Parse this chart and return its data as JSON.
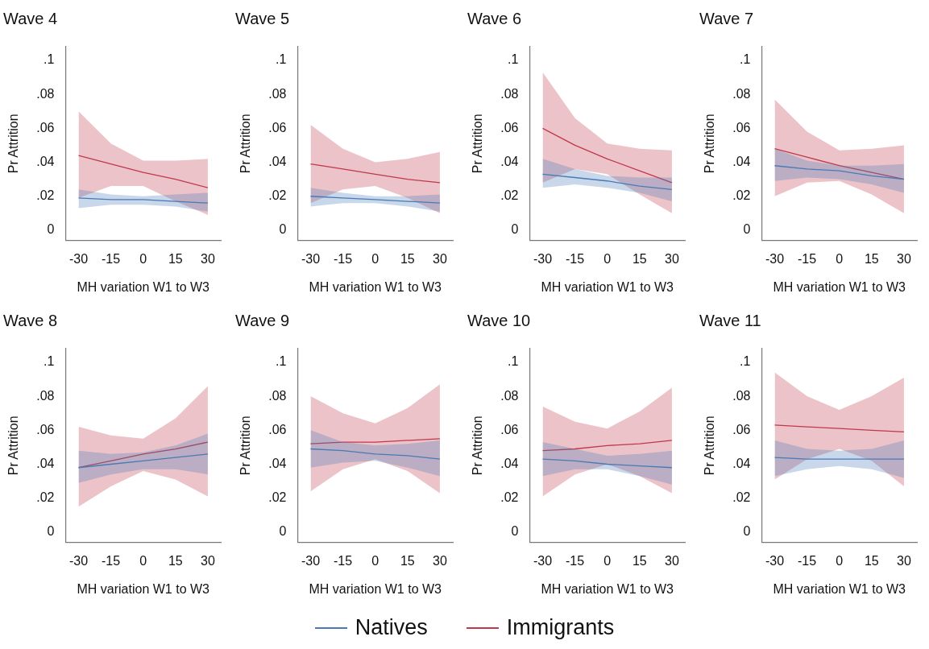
{
  "chart_data": [
    {
      "type": "line",
      "title": "Wave 4",
      "xlabel": "MH variation W1 to W3",
      "ylabel": "Pr Attrition",
      "marker": "none",
      "xlim": [
        -36,
        36
      ],
      "ylim": [
        -0.006,
        0.108
      ],
      "xticks": [
        -30,
        -15,
        0,
        15,
        30
      ],
      "yticks": [
        {
          "value": 0,
          "label": "0"
        },
        {
          "value": 0.02,
          "label": ".02"
        },
        {
          "value": 0.04,
          "label": ".04"
        },
        {
          "value": 0.06,
          "label": ".06"
        },
        {
          "value": 0.08,
          "label": ".08"
        },
        {
          "value": 0.1,
          "label": ".1"
        }
      ],
      "x": [
        -30,
        -15,
        0,
        15,
        30
      ],
      "series": [
        {
          "color": "#4a7ab5",
          "values": [
            0.019,
            0.018,
            0.018,
            0.017,
            0.016
          ],
          "lower": [
            0.013,
            0.015,
            0.015,
            0.014,
            0.011
          ],
          "upper": [
            0.024,
            0.021,
            0.02,
            0.021,
            0.022
          ]
        },
        {
          "color": "#c0394b",
          "values": [
            0.044,
            0.039,
            0.034,
            0.03,
            0.025
          ],
          "lower": [
            0.019,
            0.026,
            0.026,
            0.017,
            0.009
          ],
          "upper": [
            0.07,
            0.051,
            0.041,
            0.041,
            0.042
          ]
        }
      ]
    },
    {
      "type": "line",
      "title": "Wave 5",
      "xlabel": "MH variation W1 to W3",
      "ylabel": "Pr Attrition",
      "marker": "none",
      "xlim": [
        -36,
        36
      ],
      "ylim": [
        -0.006,
        0.108
      ],
      "xticks": [
        -30,
        -15,
        0,
        15,
        30
      ],
      "yticks": [
        {
          "value": 0,
          "label": "0"
        },
        {
          "value": 0.02,
          "label": ".02"
        },
        {
          "value": 0.04,
          "label": ".04"
        },
        {
          "value": 0.06,
          "label": ".06"
        },
        {
          "value": 0.08,
          "label": ".08"
        },
        {
          "value": 0.1,
          "label": ".1"
        }
      ],
      "x": [
        -30,
        -15,
        0,
        15,
        30
      ],
      "series": [
        {
          "color": "#4a7ab5",
          "values": [
            0.02,
            0.019,
            0.018,
            0.017,
            0.016
          ],
          "lower": [
            0.014,
            0.016,
            0.016,
            0.014,
            0.011
          ],
          "upper": [
            0.025,
            0.022,
            0.02,
            0.02,
            0.021
          ]
        },
        {
          "color": "#c0394b",
          "values": [
            0.039,
            0.036,
            0.033,
            0.03,
            0.028
          ],
          "lower": [
            0.016,
            0.024,
            0.026,
            0.019,
            0.01
          ],
          "upper": [
            0.062,
            0.048,
            0.04,
            0.042,
            0.046
          ]
        }
      ]
    },
    {
      "type": "line",
      "title": "Wave 6",
      "xlabel": "MH variation W1 to W3",
      "ylabel": "Pr Attrition",
      "marker": "none",
      "xlim": [
        -36,
        36
      ],
      "ylim": [
        -0.006,
        0.108
      ],
      "xticks": [
        -30,
        -15,
        0,
        15,
        30
      ],
      "yticks": [
        {
          "value": 0,
          "label": "0"
        },
        {
          "value": 0.02,
          "label": ".02"
        },
        {
          "value": 0.04,
          "label": ".04"
        },
        {
          "value": 0.06,
          "label": ".06"
        },
        {
          "value": 0.08,
          "label": ".08"
        },
        {
          "value": 0.1,
          "label": ".1"
        }
      ],
      "x": [
        -30,
        -15,
        0,
        15,
        30
      ],
      "series": [
        {
          "color": "#4a7ab5",
          "values": [
            0.033,
            0.031,
            0.029,
            0.026,
            0.024
          ],
          "lower": [
            0.025,
            0.027,
            0.025,
            0.022,
            0.017
          ],
          "upper": [
            0.042,
            0.036,
            0.032,
            0.031,
            0.031
          ]
        },
        {
          "color": "#c0394b",
          "values": [
            0.06,
            0.05,
            0.042,
            0.035,
            0.028
          ],
          "lower": [
            0.028,
            0.036,
            0.033,
            0.021,
            0.01
          ],
          "upper": [
            0.093,
            0.066,
            0.051,
            0.048,
            0.047
          ]
        }
      ]
    },
    {
      "type": "line",
      "title": "Wave 7",
      "xlabel": "MH variation W1 to W3",
      "ylabel": "Pr Attrition",
      "marker": "none",
      "xlim": [
        -36,
        36
      ],
      "ylim": [
        -0.006,
        0.108
      ],
      "xticks": [
        -30,
        -15,
        0,
        15,
        30
      ],
      "yticks": [
        {
          "value": 0,
          "label": "0"
        },
        {
          "value": 0.02,
          "label": ".02"
        },
        {
          "value": 0.04,
          "label": ".04"
        },
        {
          "value": 0.06,
          "label": ".06"
        },
        {
          "value": 0.08,
          "label": ".08"
        },
        {
          "value": 0.1,
          "label": ".1"
        }
      ],
      "x": [
        -30,
        -15,
        0,
        15,
        30
      ],
      "series": [
        {
          "color": "#4a7ab5",
          "values": [
            0.038,
            0.036,
            0.035,
            0.032,
            0.03
          ],
          "lower": [
            0.029,
            0.031,
            0.03,
            0.027,
            0.022
          ],
          "upper": [
            0.048,
            0.041,
            0.038,
            0.038,
            0.039
          ]
        },
        {
          "color": "#c0394b",
          "values": [
            0.048,
            0.043,
            0.038,
            0.034,
            0.03
          ],
          "lower": [
            0.02,
            0.028,
            0.029,
            0.021,
            0.01
          ],
          "upper": [
            0.077,
            0.058,
            0.047,
            0.048,
            0.05
          ]
        }
      ]
    },
    {
      "type": "line",
      "title": "Wave 8",
      "xlabel": "MH variation W1 to W3",
      "ylabel": "Pr Attrition",
      "marker": "none",
      "xlim": [
        -36,
        36
      ],
      "ylim": [
        -0.006,
        0.108
      ],
      "xticks": [
        -30,
        -15,
        0,
        15,
        30
      ],
      "yticks": [
        {
          "value": 0,
          "label": "0"
        },
        {
          "value": 0.02,
          "label": ".02"
        },
        {
          "value": 0.04,
          "label": ".04"
        },
        {
          "value": 0.06,
          "label": ".06"
        },
        {
          "value": 0.08,
          "label": ".08"
        },
        {
          "value": 0.1,
          "label": ".1"
        }
      ],
      "x": [
        -30,
        -15,
        0,
        15,
        30
      ],
      "series": [
        {
          "color": "#4a7ab5",
          "values": [
            0.038,
            0.04,
            0.042,
            0.044,
            0.046
          ],
          "lower": [
            0.029,
            0.034,
            0.037,
            0.037,
            0.034
          ],
          "upper": [
            0.048,
            0.046,
            0.047,
            0.051,
            0.058
          ]
        },
        {
          "color": "#c0394b",
          "values": [
            0.038,
            0.042,
            0.046,
            0.049,
            0.053
          ],
          "lower": [
            0.015,
            0.027,
            0.036,
            0.031,
            0.021
          ],
          "upper": [
            0.062,
            0.057,
            0.055,
            0.067,
            0.086
          ]
        }
      ]
    },
    {
      "type": "line",
      "title": "Wave 9",
      "xlabel": "MH variation W1 to W3",
      "ylabel": "Pr Attrition",
      "marker": "none",
      "xlim": [
        -36,
        36
      ],
      "ylim": [
        -0.006,
        0.108
      ],
      "xticks": [
        -30,
        -15,
        0,
        15,
        30
      ],
      "yticks": [
        {
          "value": 0,
          "label": "0"
        },
        {
          "value": 0.02,
          "label": ".02"
        },
        {
          "value": 0.04,
          "label": ".04"
        },
        {
          "value": 0.06,
          "label": ".06"
        },
        {
          "value": 0.08,
          "label": ".08"
        },
        {
          "value": 0.1,
          "label": ".1"
        }
      ],
      "x": [
        -30,
        -15,
        0,
        15,
        30
      ],
      "series": [
        {
          "color": "#4a7ab5",
          "values": [
            0.049,
            0.048,
            0.046,
            0.045,
            0.043
          ],
          "lower": [
            0.038,
            0.041,
            0.042,
            0.038,
            0.033
          ],
          "upper": [
            0.06,
            0.053,
            0.051,
            0.052,
            0.054
          ]
        },
        {
          "color": "#c0394b",
          "values": [
            0.052,
            0.053,
            0.053,
            0.054,
            0.055
          ],
          "lower": [
            0.024,
            0.037,
            0.043,
            0.036,
            0.023
          ],
          "upper": [
            0.08,
            0.07,
            0.064,
            0.073,
            0.087
          ]
        }
      ]
    },
    {
      "type": "line",
      "title": "Wave 10",
      "xlabel": "MH variation W1 to W3",
      "ylabel": "Pr Attrition",
      "marker": "none",
      "xlim": [
        -36,
        36
      ],
      "ylim": [
        -0.006,
        0.108
      ],
      "xticks": [
        -30,
        -15,
        0,
        15,
        30
      ],
      "yticks": [
        {
          "value": 0,
          "label": "0"
        },
        {
          "value": 0.02,
          "label": ".02"
        },
        {
          "value": 0.04,
          "label": ".04"
        },
        {
          "value": 0.06,
          "label": ".06"
        },
        {
          "value": 0.08,
          "label": ".08"
        },
        {
          "value": 0.1,
          "label": ".1"
        }
      ],
      "x": [
        -30,
        -15,
        0,
        15,
        30
      ],
      "series": [
        {
          "color": "#4a7ab5",
          "values": [
            0.043,
            0.042,
            0.04,
            0.039,
            0.038
          ],
          "lower": [
            0.033,
            0.037,
            0.037,
            0.033,
            0.028
          ],
          "upper": [
            0.053,
            0.049,
            0.045,
            0.046,
            0.048
          ]
        },
        {
          "color": "#c0394b",
          "values": [
            0.048,
            0.049,
            0.051,
            0.052,
            0.054
          ],
          "lower": [
            0.021,
            0.034,
            0.04,
            0.033,
            0.023
          ],
          "upper": [
            0.074,
            0.065,
            0.061,
            0.071,
            0.085
          ]
        }
      ]
    },
    {
      "type": "line",
      "title": "Wave 11",
      "xlabel": "MH variation W1 to W3",
      "ylabel": "Pr Attrition",
      "marker": "none",
      "legend": "bottom",
      "xlim": [
        -36,
        36
      ],
      "ylim": [
        -0.006,
        0.108
      ],
      "xticks": [
        -30,
        -15,
        0,
        15,
        30
      ],
      "yticks": [
        {
          "value": 0,
          "label": "0"
        },
        {
          "value": 0.02,
          "label": ".02"
        },
        {
          "value": 0.04,
          "label": ".04"
        },
        {
          "value": 0.06,
          "label": ".06"
        },
        {
          "value": 0.08,
          "label": ".08"
        },
        {
          "value": 0.1,
          "label": ".1"
        }
      ],
      "x": [
        -30,
        -15,
        0,
        15,
        30
      ],
      "series": [
        {
          "name": "Natives",
          "color": "#4a7ab5",
          "values": [
            0.044,
            0.043,
            0.043,
            0.043,
            0.043
          ],
          "lower": [
            0.033,
            0.037,
            0.039,
            0.037,
            0.032
          ],
          "upper": [
            0.054,
            0.049,
            0.048,
            0.049,
            0.054
          ]
        },
        {
          "name": "Immigrants",
          "color": "#c0394b",
          "values": [
            0.063,
            0.062,
            0.061,
            0.06,
            0.059
          ],
          "lower": [
            0.031,
            0.043,
            0.049,
            0.042,
            0.027
          ],
          "upper": [
            0.094,
            0.08,
            0.072,
            0.08,
            0.091
          ]
        }
      ]
    }
  ]
}
